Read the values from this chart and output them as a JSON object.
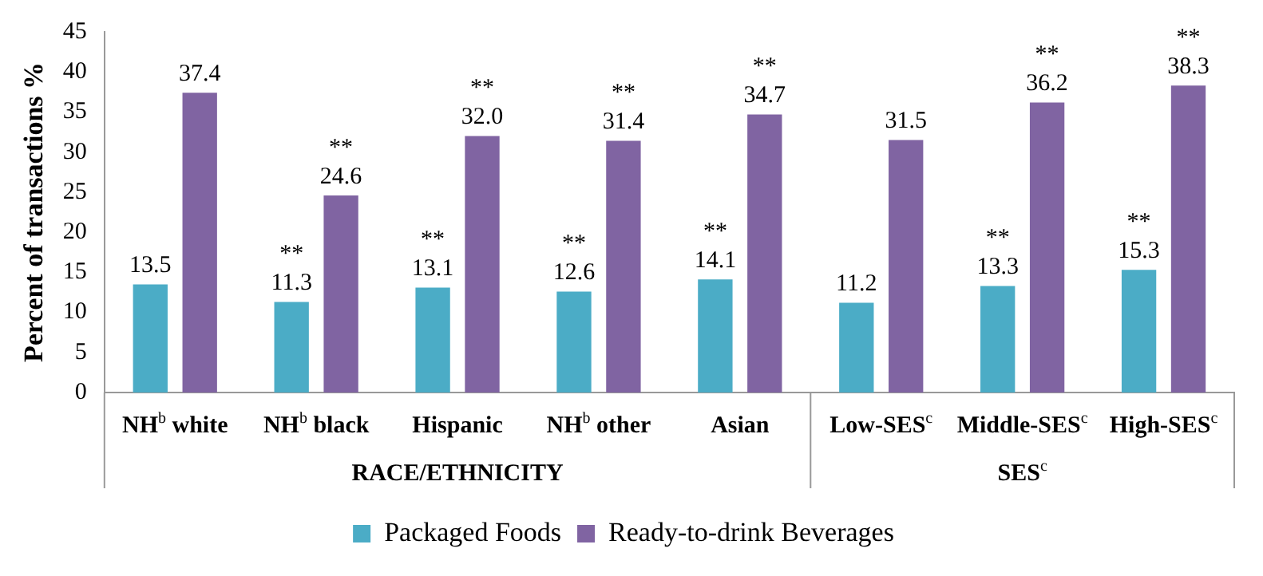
{
  "chart_data": {
    "type": "bar",
    "ylabel": "Percent of transactions %",
    "categories": [
      "NH$^{b}$ white",
      "NH$^{b}$ black",
      "Hispanic",
      "NH$^{b}$ other",
      "Asian",
      "Low-SES$^{c}$",
      "Middle-SES$^{c}$",
      "High-SES$^{c}$"
    ],
    "series": [
      {
        "name": "Packaged Foods",
        "color": "#4bacc6",
        "values": [
          13.5,
          11.3,
          13.1,
          12.6,
          14.1,
          11.2,
          13.3,
          15.3
        ],
        "value_labels": [
          "13.5",
          "11.3",
          "13.1",
          "12.6",
          "14.1",
          "11.2",
          "13.3",
          "15.3"
        ]
      },
      {
        "name": "Ready-to-drink Beverages",
        "color": "#8064a2",
        "values": [
          37.4,
          24.6,
          32.0,
          31.4,
          34.7,
          31.5,
          36.2,
          38.3
        ],
        "value_labels": [
          "37.4",
          "24.6",
          "32.0",
          "31.4",
          "34.7",
          "31.5",
          "36.2",
          "38.3"
        ]
      }
    ],
    "ylim": [
      0,
      45
    ],
    "yticks": [
      0,
      5,
      10,
      15,
      20,
      25,
      30,
      35,
      40,
      45
    ],
    "grid": false,
    "legend": "bottom",
    "annotations": [
      {
        "text": "**",
        "x": "NH$^{b}$ black",
        "y": 11.3
      },
      {
        "text": "**",
        "x": "NH$^{b}$ black",
        "y": 24.6
      },
      {
        "text": "**",
        "x": "Hispanic",
        "y": 13.1
      },
      {
        "text": "**",
        "x": "Hispanic",
        "y": 32.0
      },
      {
        "text": "**",
        "x": "NH$^{b}$ other",
        "y": 12.6
      },
      {
        "text": "**",
        "x": "NH$^{b}$ other",
        "y": 31.4
      },
      {
        "text": "**",
        "x": "Asian",
        "y": 14.1
      },
      {
        "text": "**",
        "x": "Asian",
        "y": 34.7
      },
      {
        "text": "**",
        "x": "Middle-SES$^{c}$",
        "y": 13.3
      },
      {
        "text": "**",
        "x": "Middle-SES$^{c}$",
        "y": 36.2
      },
      {
        "text": "**",
        "x": "High-SES$^{c}$",
        "y": 15.3
      },
      {
        "text": "**",
        "x": "High-SES$^{c}$",
        "y": 38.3
      },
      "RACE/ETHNICITY",
      "SES$^{c}$"
    ]
  }
}
